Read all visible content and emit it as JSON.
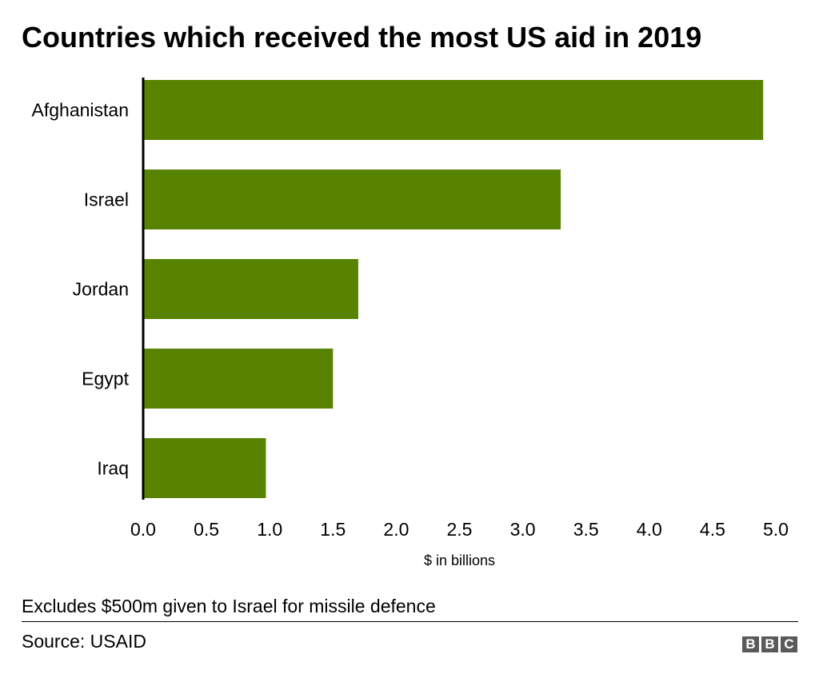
{
  "chart_data": {
    "type": "bar",
    "orientation": "horizontal",
    "title": "Countries which received the most US aid in 2019",
    "categories": [
      "Afghanistan",
      "Israel",
      "Jordan",
      "Egypt",
      "Iraq"
    ],
    "values": [
      4.9,
      3.3,
      1.7,
      1.5,
      0.97
    ],
    "xlabel": "$ in billions",
    "ylabel": "",
    "xlim": [
      0,
      5
    ],
    "xticks": [
      "0.0",
      "0.5",
      "1.0",
      "1.5",
      "2.0",
      "2.5",
      "3.0",
      "3.5",
      "4.0",
      "4.5",
      "5.0"
    ],
    "grid": false,
    "bar_color": "#588300"
  },
  "footer": {
    "note": "Excludes $500m given to Israel for missile defence",
    "source": "Source: USAID",
    "logo": "BBC"
  }
}
